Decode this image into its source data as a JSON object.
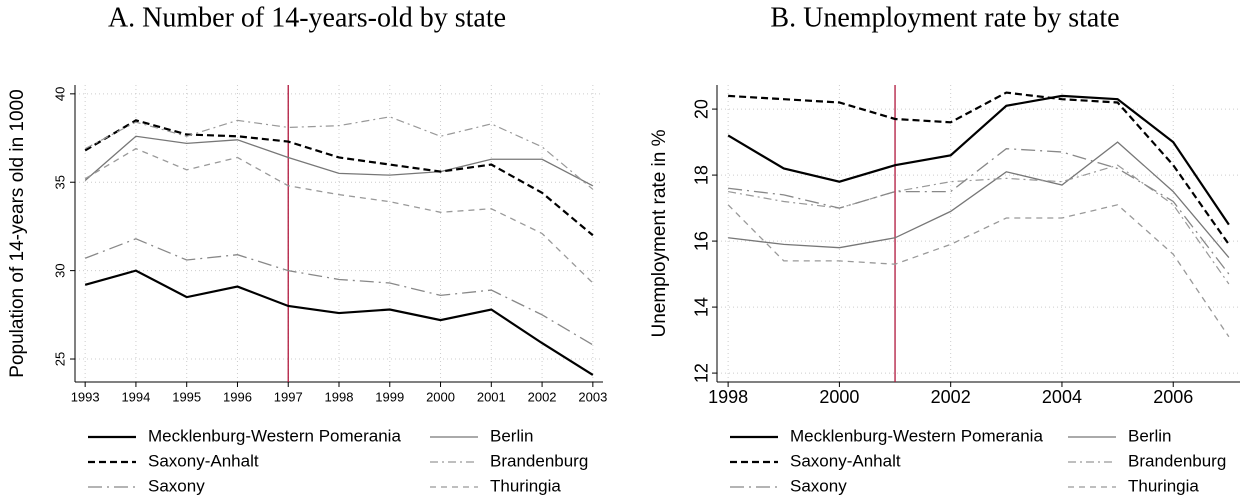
{
  "chart_data": [
    {
      "type": "line",
      "title": "A. Number of 14-years-old by state",
      "ylabel": "Population of 14-years old in 1000",
      "x": [
        1993,
        1994,
        1995,
        1996,
        1997,
        1998,
        1999,
        2000,
        2001,
        2002,
        2003
      ],
      "xlim": [
        1992.8,
        2003.2
      ],
      "xticks": [
        1993,
        1994,
        1995,
        1996,
        1997,
        1998,
        1999,
        2000,
        2001,
        2002,
        2003
      ],
      "ylim": [
        23.7,
        40.5
      ],
      "yticks": [
        25,
        30,
        35,
        40
      ],
      "grid": true,
      "vline": 1997,
      "vline_color": "#b0173c",
      "series": [
        {
          "name": "Mecklenburg-Western Pomerania",
          "color": "#000000",
          "dash": "solid",
          "values": [
            29.2,
            30.0,
            28.5,
            29.1,
            28.0,
            27.6,
            27.8,
            27.2,
            27.8,
            25.9,
            24.1
          ]
        },
        {
          "name": "Berlin",
          "color": "#777777",
          "dash": "thin",
          "values": [
            35.1,
            37.6,
            37.2,
            37.4,
            36.4,
            35.5,
            35.4,
            35.6,
            36.3,
            36.3,
            34.8
          ]
        },
        {
          "name": "Saxony-Anhalt",
          "color": "#000000",
          "dash": "dashed",
          "values": [
            36.8,
            38.5,
            37.7,
            37.6,
            37.3,
            36.4,
            36.0,
            35.6,
            36.0,
            34.4,
            32.0
          ]
        },
        {
          "name": "Brandenburg",
          "color": "#999999",
          "dash": "dashdot",
          "values": [
            36.9,
            38.4,
            37.6,
            38.5,
            38.1,
            38.2,
            38.7,
            37.6,
            38.3,
            37.0,
            34.6
          ]
        },
        {
          "name": "Saxony",
          "color": "#888888",
          "dash": "longdash",
          "values": [
            30.7,
            31.8,
            30.6,
            30.9,
            30.0,
            29.5,
            29.3,
            28.6,
            28.9,
            27.5,
            25.8
          ]
        },
        {
          "name": "Thuringia",
          "color": "#999999",
          "dash": "shortdash",
          "values": [
            35.2,
            36.9,
            35.7,
            36.4,
            34.8,
            34.3,
            33.9,
            33.3,
            33.5,
            32.1,
            29.3
          ]
        }
      ]
    },
    {
      "type": "line",
      "title": "B. Unemployment rate by state",
      "ylabel": "Unemployment rate in %",
      "x": [
        1998,
        1999,
        2000,
        2001,
        2002,
        2003,
        2004,
        2005,
        2006,
        2007
      ],
      "xlim": [
        1997.8,
        2007.2
      ],
      "xticks": [
        1998,
        2000,
        2002,
        2004,
        2006
      ],
      "ylim": [
        11.73,
        20.73
      ],
      "yticks": [
        12,
        14,
        16,
        18,
        20
      ],
      "grid": true,
      "vline": 2001,
      "vline_color": "#b0173c",
      "series": [
        {
          "name": "Mecklenburg-Western Pomerania",
          "color": "#000000",
          "dash": "solid",
          "values": [
            19.2,
            18.2,
            17.8,
            18.3,
            18.6,
            20.1,
            20.4,
            20.3,
            19.0,
            16.5
          ]
        },
        {
          "name": "Berlin",
          "color": "#777777",
          "dash": "thin",
          "values": [
            16.1,
            15.9,
            15.8,
            16.1,
            16.9,
            18.1,
            17.7,
            19.0,
            17.5,
            15.5
          ]
        },
        {
          "name": "Saxony-Anhalt",
          "color": "#000000",
          "dash": "dashed",
          "values": [
            20.4,
            20.3,
            20.2,
            19.7,
            19.6,
            20.5,
            20.3,
            20.2,
            18.3,
            15.9
          ]
        },
        {
          "name": "Brandenburg",
          "color": "#999999",
          "dash": "dashdot",
          "values": [
            17.5,
            17.2,
            17.0,
            17.5,
            17.8,
            17.9,
            17.8,
            18.3,
            17.1,
            14.7
          ]
        },
        {
          "name": "Saxony",
          "color": "#888888",
          "dash": "longdash",
          "values": [
            17.6,
            17.4,
            17.0,
            17.5,
            17.5,
            18.8,
            18.7,
            18.2,
            17.2,
            15.0
          ]
        },
        {
          "name": "Thuringia",
          "color": "#999999",
          "dash": "shortdash",
          "values": [
            17.1,
            15.4,
            15.4,
            15.3,
            15.9,
            16.7,
            16.7,
            17.1,
            15.6,
            13.1
          ]
        }
      ]
    }
  ]
}
